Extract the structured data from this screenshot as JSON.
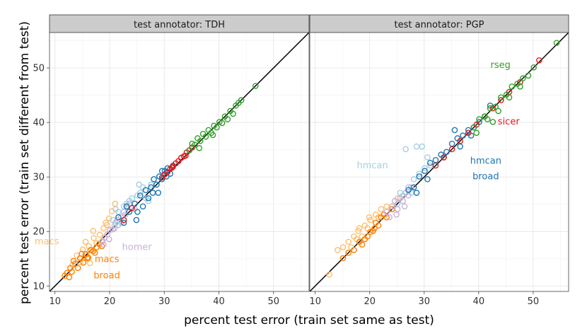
{
  "chart_data": {
    "type": "scatter",
    "xlabel": "percent test error (train set same as test)",
    "ylabel": "percent test error (train set different from test)",
    "xlim": [
      9,
      56.5
    ],
    "ylim": [
      9,
      56.5
    ],
    "x_ticks": [
      10,
      20,
      30,
      40,
      50
    ],
    "y_ticks": [
      10,
      20,
      30,
      40,
      50
    ],
    "grid": true,
    "reference_line": "y = x",
    "colors": {
      "macs": "#fdbf6f",
      "macs broad": "#ff7f00",
      "homer": "#cab2d6",
      "hmcan": "#a6cee3",
      "hmcan broad": "#1f78b4",
      "sicer": "#e31a1c",
      "rseg": "#33a02c"
    },
    "panels": [
      {
        "strip": "test annotator: TDH",
        "annotations": [
          {
            "text": "macs",
            "series": "macs",
            "x": 8.5,
            "y": 17.6
          },
          {
            "text": "homer",
            "series": "homer",
            "x": 25.0,
            "y": 16.6
          },
          {
            "text": "macs",
            "series": "macs broad",
            "x": 19.5,
            "y": 14.4
          },
          {
            "text": "broad",
            "series": "macs broad",
            "x": 19.5,
            "y": 11.4
          }
        ],
        "series": [
          {
            "name": "macs",
            "x": [
              13.2,
              14.0,
              14.6,
              15.1,
              15.7,
              16.2,
              16.8,
              17.1,
              17.6,
              18.2,
              18.9,
              19.3,
              19.9,
              20.4,
              21.0,
              17.0,
              15.6,
              18.7,
              16.4,
              19.5
            ],
            "y": [
              13.8,
              15.6,
              14.4,
              16.7,
              15.9,
              17.3,
              16.6,
              18.8,
              17.9,
              19.4,
              20.6,
              21.6,
              22.4,
              23.7,
              25.1,
              20.1,
              18.1,
              18.3,
              14.2,
              21.2
            ]
          },
          {
            "name": "macs broad",
            "x": [
              11.8,
              12.2,
              12.8,
              13.1,
              13.7,
              14.2,
              14.6,
              15.2,
              15.6,
              16.1,
              16.5,
              17.0,
              17.6,
              18.1,
              18.6,
              13.4,
              14.9,
              12.6,
              15.9,
              17.3
            ],
            "y": [
              11.9,
              12.4,
              13.3,
              12.6,
              14.1,
              13.3,
              15.1,
              14.3,
              15.8,
              15.2,
              16.6,
              16.4,
              17.1,
              17.7,
              17.3,
              14.6,
              15.9,
              11.6,
              15.1,
              16.1
            ]
          },
          {
            "name": "homer",
            "x": [
              18.6,
              19.1,
              19.6,
              20.1,
              20.6,
              21.1,
              21.6,
              22.1,
              22.6,
              23.2,
              19.9,
              21.4,
              22.9,
              18.9,
              20.9,
              23.6
            ],
            "y": [
              18.1,
              18.9,
              19.5,
              20.3,
              20.4,
              21.6,
              21.2,
              22.6,
              23.6,
              24.5,
              18.6,
              22.1,
              23.1,
              17.6,
              20.6,
              25.1
            ]
          },
          {
            "name": "hmcan",
            "x": [
              20.6,
              21.6,
              22.6,
              23.6,
              24.6,
              25.1,
              25.6,
              26.1,
              27.1,
              28.1,
              21.1,
              22.1,
              23.1,
              24.1,
              25.4,
              26.6,
              20.9,
              27.6
            ],
            "y": [
              22.1,
              23.6,
              24.6,
              25.6,
              24.1,
              26.6,
              27.1,
              28.1,
              25.6,
              29.6,
              24.1,
              21.6,
              25.1,
              26.1,
              28.6,
              26.1,
              21.1,
              28.6
            ]
          },
          {
            "name": "hmcan broad",
            "x": [
              21.6,
              22.6,
              23.6,
              24.6,
              25.6,
              26.6,
              27.1,
              27.6,
              28.1,
              28.6,
              29.1,
              29.6,
              30.1,
              30.6,
              31.1,
              31.6,
              25.1,
              26.1,
              23.1,
              29.6,
              28.9,
              27.9,
              24.9,
              30.4
            ],
            "y": [
              22.6,
              21.6,
              23.6,
              25.1,
              26.6,
              27.6,
              26.1,
              28.1,
              29.6,
              28.6,
              30.1,
              29.6,
              31.1,
              31.6,
              30.6,
              32.1,
              23.6,
              24.6,
              24.6,
              31.1,
              27.1,
              27.1,
              22.1,
              30.1
            ]
          },
          {
            "name": "sicer",
            "x": [
              29.6,
              30.1,
              30.6,
              31.1,
              31.6,
              32.1,
              32.6,
              33.1,
              33.6,
              34.1,
              34.6,
              35.1,
              22.6,
              24.1,
              31.4,
              33.9
            ],
            "y": [
              29.9,
              30.5,
              30.9,
              31.5,
              31.9,
              32.5,
              32.9,
              33.5,
              33.8,
              34.5,
              34.9,
              35.4,
              22.1,
              24.3,
              31.7,
              33.9
            ]
          },
          {
            "name": "rseg",
            "x": [
              34.6,
              35.1,
              35.6,
              36.1,
              36.6,
              37.1,
              37.6,
              38.1,
              38.6,
              39.1,
              39.6,
              40.1,
              40.6,
              41.1,
              41.6,
              42.1,
              42.6,
              43.1,
              43.6,
              44.1,
              46.7,
              36.4,
              38.9
            ],
            "y": [
              34.9,
              36.1,
              35.9,
              37.1,
              36.6,
              37.9,
              37.4,
              38.6,
              38.1,
              39.4,
              39.1,
              40.1,
              39.9,
              41.1,
              40.6,
              42.1,
              41.6,
              43.1,
              43.6,
              44.1,
              46.7,
              35.3,
              37.7
            ]
          }
        ]
      },
      {
        "strip": "test annotator: PGP",
        "annotations": [
          {
            "text": "rseg",
            "series": "rseg",
            "x": 44.0,
            "y": 50.0
          },
          {
            "text": "sicer",
            "series": "sicer",
            "x": 45.5,
            "y": 39.6
          },
          {
            "text": "hmcan",
            "series": "hmcan",
            "x": 20.5,
            "y": 31.6
          },
          {
            "text": "hmcan",
            "series": "hmcan broad",
            "x": 41.3,
            "y": 32.4
          },
          {
            "text": "broad",
            "series": "hmcan broad",
            "x": 41.3,
            "y": 29.6
          }
        ],
        "series": [
          {
            "name": "macs",
            "x": [
              12.6,
              14.1,
              15.1,
              16.1,
              16.6,
              17.1,
              17.6,
              18.1,
              18.6,
              19.1,
              19.6,
              20.1,
              21.1,
              22.1,
              23.1,
              24.1,
              25.1,
              17.9,
              19.9,
              21.6
            ],
            "y": [
              12.1,
              16.6,
              17.1,
              18.1,
              17.1,
              19.1,
              18.6,
              20.6,
              19.1,
              21.1,
              20.6,
              22.1,
              23.1,
              24.1,
              24.6,
              24.6,
              26.1,
              20.1,
              22.6,
              22.6
            ]
          },
          {
            "name": "macs broad",
            "x": [
              15.1,
              16.1,
              17.1,
              18.1,
              19.1,
              19.6,
              20.1,
              20.6,
              21.1,
              21.6,
              22.1,
              23.1,
              24.1,
              18.6,
              20.9,
              22.6
            ],
            "y": [
              15.1,
              16.1,
              16.6,
              18.1,
              18.6,
              19.1,
              19.9,
              20.1,
              21.6,
              21.1,
              22.6,
              22.6,
              24.1,
              17.6,
              20.6,
              23.1
            ]
          },
          {
            "name": "homer",
            "x": [
              23.1,
              23.6,
              24.1,
              24.6,
              25.1,
              25.6,
              26.1,
              26.6,
              27.1,
              27.6,
              24.9,
              26.4
            ],
            "y": [
              23.6,
              22.6,
              24.6,
              25.6,
              24.1,
              26.1,
              25.6,
              27.1,
              26.6,
              28.1,
              23.1,
              24.6
            ]
          },
          {
            "name": "hmcan",
            "x": [
              25.1,
              26.1,
              27.1,
              28.1,
              29.1,
              30.1,
              31.1,
              25.6,
              27.6,
              29.6,
              26.6,
              28.6,
              30.6
            ],
            "y": [
              25.1,
              26.6,
              28.1,
              29.6,
              30.6,
              31.6,
              32.1,
              27.1,
              27.1,
              35.6,
              35.1,
              35.6,
              33.6
            ]
          },
          {
            "name": "hmcan broad",
            "x": [
              27.1,
              28.1,
              29.1,
              30.1,
              31.1,
              32.1,
              33.1,
              34.1,
              35.1,
              36.1,
              37.1,
              38.1,
              39.1,
              40.1,
              41.1,
              42.1,
              28.6,
              30.6,
              33.6,
              36.6,
              35.6,
              38.6
            ],
            "y": [
              27.6,
              28.1,
              30.1,
              31.1,
              32.6,
              33.1,
              34.1,
              34.6,
              36.1,
              37.1,
              37.6,
              38.6,
              39.1,
              40.1,
              41.1,
              43.1,
              27.1,
              29.6,
              33.6,
              35.6,
              38.6,
              37.6
            ]
          },
          {
            "name": "sicer",
            "x": [
              32.1,
              33.6,
              35.1,
              36.6,
              38.1,
              39.6,
              41.1,
              42.6,
              44.1,
              45.6,
              51.1,
              47.6
            ],
            "y": [
              32.1,
              33.6,
              35.1,
              36.6,
              38.1,
              39.6,
              41.1,
              42.6,
              44.1,
              45.6,
              51.4,
              47.4
            ]
          },
          {
            "name": "rseg",
            "x": [
              39.1,
              40.1,
              41.1,
              42.1,
              43.1,
              44.1,
              45.1,
              46.1,
              47.1,
              48.1,
              49.1,
              50.1,
              41.6,
              43.6,
              45.6,
              47.6,
              54.3,
              39.6,
              42.6
            ],
            "y": [
              39.1,
              40.6,
              41.1,
              42.6,
              42.9,
              44.6,
              45.1,
              46.6,
              47.1,
              48.1,
              48.6,
              50.1,
              40.6,
              42.1,
              44.6,
              46.6,
              54.6,
              38.1,
              40.1
            ]
          }
        ]
      }
    ]
  }
}
